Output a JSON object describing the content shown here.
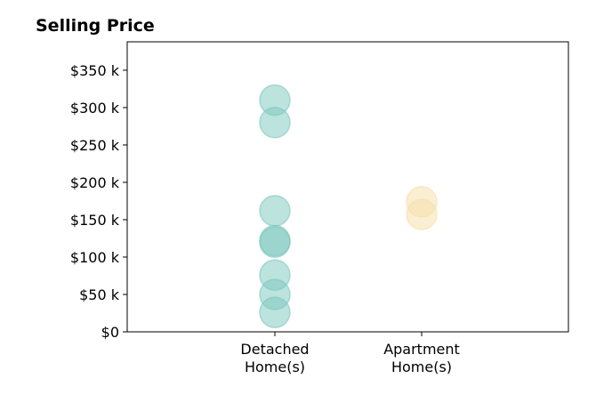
{
  "chart_data": {
    "type": "scatter",
    "title": "Selling Price",
    "xlabel": "",
    "ylabel": "",
    "categories": [
      "Detached\nHome(s)",
      "Apartment\nHome(s)"
    ],
    "ylim": [
      0,
      388
    ],
    "yticks": [
      0,
      50,
      100,
      150,
      200,
      250,
      300,
      350
    ],
    "ytick_labels": [
      "$0",
      "$50 k",
      "$100 k",
      "$150 k",
      "$200 k",
      "$250 k",
      "$300 k",
      "$350 k"
    ],
    "grid": false,
    "legend": "none",
    "series": [
      {
        "category_index": 0,
        "color": "#7bc8bd",
        "values": [
          310,
          280,
          162,
          122,
          120,
          76,
          50,
          26
        ]
      },
      {
        "category_index": 1,
        "color": "#f5dfa8",
        "values": [
          174,
          157
        ]
      }
    ]
  }
}
